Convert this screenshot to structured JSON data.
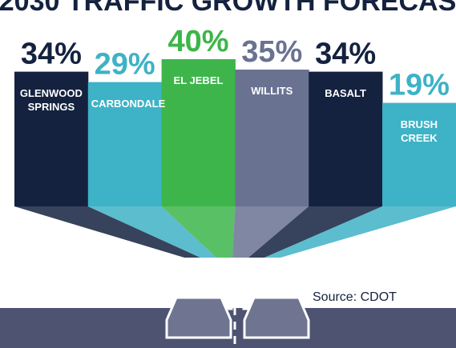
{
  "chart_data": {
    "type": "bar",
    "title": "2030 TRAFFIC GROWTH FORECAS",
    "categories": [
      "GLENWOOD SPRINGS",
      "CARBONDALE",
      "EL JEBEL",
      "WILLITS",
      "BASALT",
      "BRUSH CREEK"
    ],
    "values": [
      34,
      29,
      40,
      35,
      34,
      19
    ],
    "value_labels": [
      "34%",
      "29%",
      "40%",
      "35%",
      "34%",
      "19%"
    ],
    "colors": [
      "#14223f",
      "#3eb2c6",
      "#3db54a",
      "#6a7292",
      "#14223f",
      "#3eb2c6"
    ],
    "source": "Source: CDOT"
  }
}
